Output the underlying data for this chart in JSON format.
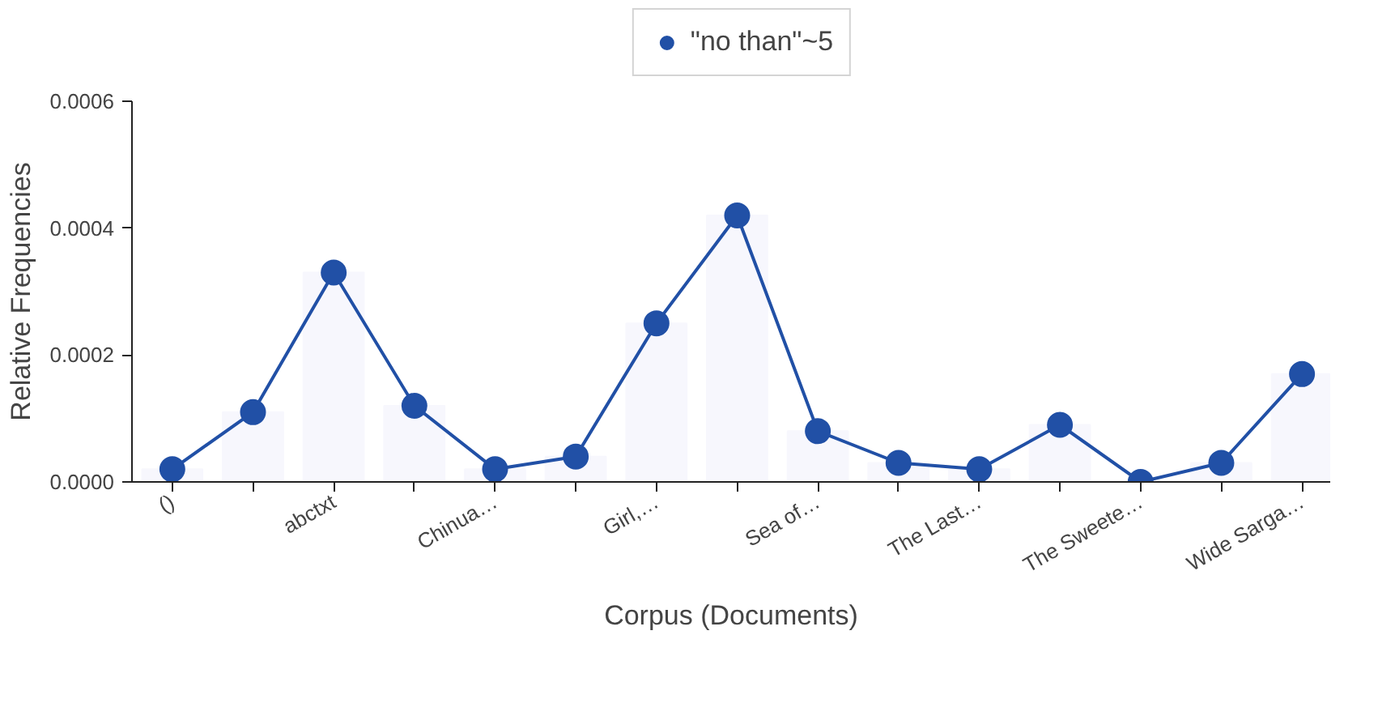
{
  "chart_data": {
    "type": "line",
    "xlabel": "Corpus (Documents)",
    "ylabel": "Relative Frequencies",
    "categories": [
      "()",
      null,
      "abctxt",
      null,
      "Chinua…",
      null,
      "Girl,…",
      null,
      "Sea of…",
      null,
      "The Last…",
      null,
      "The Sweete…",
      null,
      "Wide Sarga…"
    ],
    "series": [
      {
        "type": "bar",
        "color": "#f7f7fd",
        "values": [
          2e-05,
          0.00011,
          0.00033,
          0.00012,
          2e-05,
          4e-05,
          0.00025,
          0.00042,
          8e-05,
          3e-05,
          2e-05,
          9e-05,
          0,
          3e-05,
          0.00017
        ]
      },
      {
        "name": "\"no than\"~5",
        "color": "#2150a6",
        "values": [
          2e-05,
          0.00011,
          0.00033,
          0.00012,
          2e-05,
          4e-05,
          0.00025,
          0.00042,
          8e-05,
          3e-05,
          2e-05,
          9e-05,
          0,
          3e-05,
          0.00017
        ]
      }
    ],
    "ylim": [
      0,
      0.0006
    ],
    "yticks": [
      {
        "value": 0,
        "label": "0.0000"
      },
      {
        "value": 0.0002,
        "label": "0.0002"
      },
      {
        "value": 0.0004,
        "label": "0.0004"
      },
      {
        "value": 0.0006,
        "label": "0.0006"
      }
    ],
    "marker": "circle",
    "legend": "top",
    "grid": false
  }
}
